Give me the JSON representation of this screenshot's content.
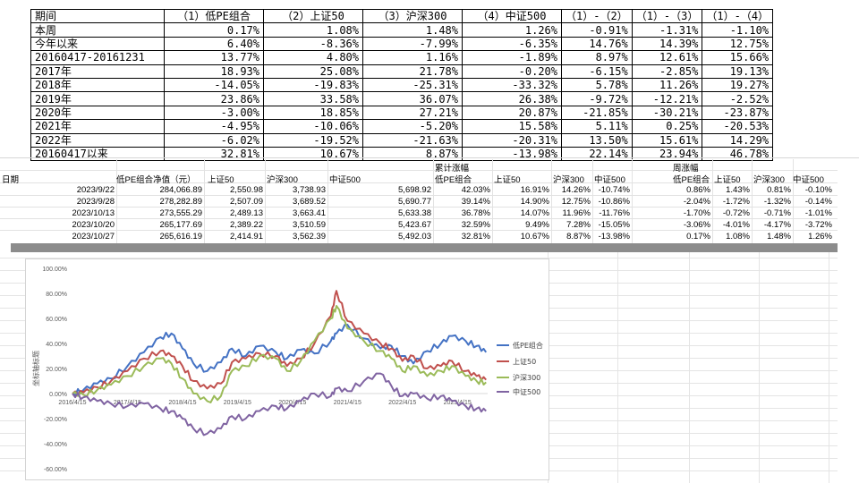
{
  "summary_table": {
    "header": [
      "期间",
      "（1）低PE组合",
      "（2）上证50",
      "（3）沪深300",
      "（4）中证500",
      "（1）-（2）",
      "（1）-（3）",
      "（1）-（4）"
    ],
    "rows": [
      [
        "本周",
        "0.17%",
        "1.08%",
        "1.48%",
        "1.26%",
        "-0.91%",
        "-1.31%",
        "-1.10%"
      ],
      [
        "今年以来",
        "6.40%",
        "-8.36%",
        "-7.99%",
        "-6.35%",
        "14.76%",
        "14.39%",
        "12.75%"
      ],
      [
        "20160417-20161231",
        "13.77%",
        "4.80%",
        "1.16%",
        "-1.89%",
        "8.97%",
        "12.61%",
        "15.66%"
      ],
      [
        "2017年",
        "18.93%",
        "25.08%",
        "21.78%",
        "-0.20%",
        "-6.15%",
        "-2.85%",
        "19.13%"
      ],
      [
        "2018年",
        "-14.05%",
        "-19.83%",
        "-25.31%",
        "-33.32%",
        "5.78%",
        "11.26%",
        "19.27%"
      ],
      [
        "2019年",
        "23.86%",
        "33.58%",
        "36.07%",
        "26.38%",
        "-9.72%",
        "-12.21%",
        "-2.52%"
      ],
      [
        "2020年",
        "-3.00%",
        "18.85%",
        "27.21%",
        "20.87%",
        "-21.85%",
        "-30.21%",
        "-23.87%"
      ],
      [
        "2021年",
        "-4.95%",
        "-10.06%",
        "-5.20%",
        "15.58%",
        "5.11%",
        "0.25%",
        "-20.53%"
      ],
      [
        "2022年",
        "-6.02%",
        "-19.52%",
        "-21.63%",
        "-20.31%",
        "13.50%",
        "15.61%",
        "14.29%"
      ],
      [
        "20160417以来",
        "32.81%",
        "10.67%",
        "8.87%",
        "-13.98%",
        "22.14%",
        "23.94%",
        "46.78%"
      ]
    ]
  },
  "mid_table": {
    "group_cumulative": "累计涨幅",
    "group_weekly": "周涨幅",
    "headers": [
      "日期",
      "低PE组合净值（元）",
      "上证50",
      "沪深300",
      "中证500",
      "低PE组合",
      "上证50",
      "沪深300",
      "中证500",
      "低PE组合",
      "上证50",
      "沪深300",
      "中证500"
    ],
    "rows": [
      [
        "2023/9/22",
        "284,066.89",
        "2,550.98",
        "3,738.93",
        "5,698.92",
        "42.03%",
        "16.91%",
        "14.26%",
        "-10.74%",
        "0.86%",
        "1.43%",
        "0.81%",
        "-0.10%"
      ],
      [
        "2023/9/28",
        "278,282.89",
        "2,507.09",
        "3,689.52",
        "5,690.77",
        "39.14%",
        "14.90%",
        "12.75%",
        "-10.86%",
        "-2.04%",
        "-1.72%",
        "-1.32%",
        "-0.14%"
      ],
      [
        "2023/10/13",
        "273,555.29",
        "2,489.13",
        "3,663.41",
        "5,633.38",
        "36.78%",
        "14.07%",
        "11.96%",
        "-11.76%",
        "-1.70%",
        "-0.72%",
        "-0.71%",
        "-1.01%"
      ],
      [
        "2023/10/20",
        "265,177.69",
        "2,389.22",
        "3,510.59",
        "5,423.67",
        "32.59%",
        "9.49%",
        "7.28%",
        "-15.05%",
        "-3.06%",
        "-4.01%",
        "-4.17%",
        "-3.72%"
      ],
      [
        "2023/10/27",
        "265,616.19",
        "2,414.91",
        "3,562.39",
        "5,492.03",
        "32.81%",
        "10.67%",
        "8.87%",
        "-13.98%",
        "0.17%",
        "1.08%",
        "1.48%",
        "1.26%"
      ]
    ]
  },
  "chart_data": {
    "type": "line",
    "ylabel": "坐标轴标题",
    "ylim": [
      -60,
      100
    ],
    "yticks": [
      "100.00%",
      "80.00%",
      "60.00%",
      "40.00%",
      "20.00%",
      "0.00%",
      "-20.00%",
      "-40.00%",
      "-60.00%"
    ],
    "x_tick_labels": [
      "2016/4/15",
      "2017/4/15",
      "2018/4/15",
      "2019/4/15",
      "2020/4/15",
      "2021/4/15",
      "2022/4/15",
      "2023/4/15"
    ],
    "x": [
      2016.3,
      2016.5,
      2016.75,
      2017.0,
      2017.3,
      2017.6,
      2017.9,
      2018.1,
      2018.3,
      2018.5,
      2018.75,
      2019.0,
      2019.2,
      2019.45,
      2019.7,
      2020.0,
      2020.2,
      2020.45,
      2020.7,
      2021.0,
      2021.1,
      2021.3,
      2021.6,
      2021.9,
      2022.1,
      2022.3,
      2022.5,
      2022.75,
      2023.0,
      2023.2,
      2023.45,
      2023.65,
      2023.82
    ],
    "series": [
      {
        "name": "低PE组合",
        "color": "#4472c4",
        "values": [
          0,
          3,
          8,
          12,
          22,
          33,
          45,
          48,
          36,
          24,
          18,
          25,
          36,
          30,
          38,
          33,
          28,
          35,
          32,
          42,
          48,
          55,
          44,
          36,
          38,
          30,
          24,
          34,
          40,
          46,
          42,
          38,
          33
        ]
      },
      {
        "name": "上证50",
        "color": "#c0504d",
        "values": [
          0,
          1,
          5,
          10,
          18,
          28,
          34,
          30,
          22,
          10,
          4,
          8,
          25,
          28,
          32,
          30,
          22,
          28,
          40,
          62,
          82,
          58,
          48,
          40,
          36,
          26,
          30,
          20,
          22,
          26,
          18,
          14,
          11
        ]
      },
      {
        "name": "沪深300",
        "color": "#9bbb59",
        "values": [
          0,
          -1,
          3,
          7,
          14,
          22,
          28,
          24,
          12,
          0,
          -6,
          -2,
          18,
          22,
          30,
          28,
          18,
          26,
          42,
          60,
          70,
          52,
          42,
          34,
          28,
          18,
          22,
          14,
          18,
          22,
          14,
          10,
          9
        ]
      },
      {
        "name": "中证500",
        "color": "#8064a2",
        "values": [
          0,
          -3,
          -6,
          -8,
          -10,
          -8,
          -12,
          -14,
          -20,
          -28,
          -32,
          -28,
          -18,
          -20,
          -14,
          -10,
          -12,
          -6,
          0,
          -2,
          4,
          2,
          10,
          16,
          6,
          -2,
          0,
          -4,
          -2,
          -6,
          -10,
          -12,
          -14
        ]
      }
    ]
  }
}
